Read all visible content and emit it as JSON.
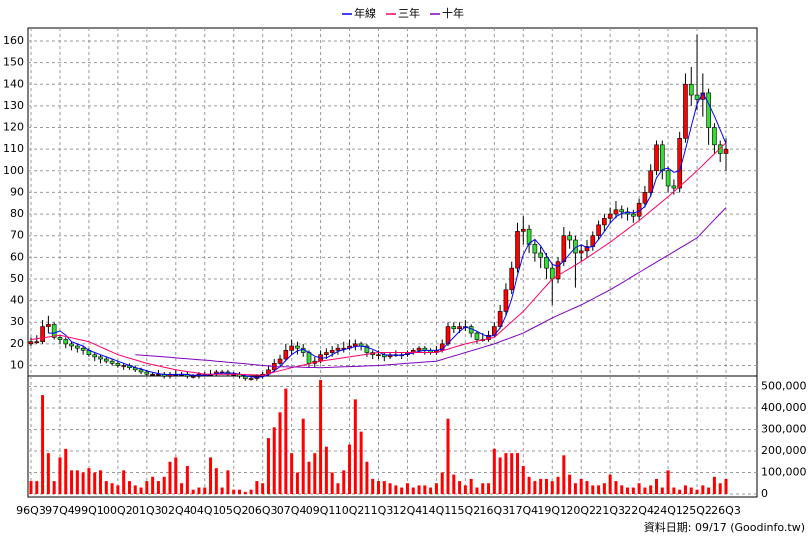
{
  "chart_data": {
    "type": "candlestick",
    "categories": [
      "96Q3",
      null,
      null,
      null,
      null,
      "97Q4",
      null,
      null,
      null,
      null,
      "99Q1",
      null,
      null,
      null,
      null,
      "00Q2",
      null,
      null,
      null,
      null,
      "01Q3",
      null,
      null,
      null,
      null,
      "02Q4",
      null,
      null,
      null,
      null,
      "04Q1",
      null,
      null,
      null,
      null,
      "05Q2",
      null,
      null,
      null,
      null,
      "06Q3",
      null,
      null,
      null,
      null,
      "07Q4",
      null,
      null,
      null,
      null,
      "09Q1",
      null,
      null,
      null,
      null,
      "10Q2",
      null,
      null,
      null,
      null,
      "11Q3",
      null,
      null,
      null,
      null,
      "12Q4",
      null,
      null,
      null,
      null,
      "14Q1",
      null,
      null,
      null,
      null,
      "15Q2",
      null,
      null,
      null,
      null,
      "16Q3",
      null,
      null,
      null,
      null,
      "17Q4",
      null,
      null,
      null,
      null,
      "19Q1",
      null,
      null,
      null,
      null,
      "20Q2",
      null,
      null,
      null,
      null,
      "21Q3",
      null,
      null,
      null,
      null,
      "22Q4",
      null,
      null,
      null,
      null,
      "24Q1",
      null,
      null,
      null,
      null,
      "25Q2",
      null,
      null,
      null,
      null,
      "26Q3"
    ],
    "ohlc": [
      [
        20,
        23,
        19,
        21
      ],
      [
        21,
        24,
        20,
        21
      ],
      [
        21,
        31,
        20,
        28
      ],
      [
        28,
        33,
        25,
        29
      ],
      [
        29,
        30,
        22,
        23
      ],
      [
        23,
        24,
        20,
        22
      ],
      [
        22,
        23,
        18,
        20
      ],
      [
        20,
        21,
        17,
        19
      ],
      [
        19,
        20,
        16,
        18
      ],
      [
        18,
        19,
        15,
        17
      ],
      [
        17,
        18,
        14,
        15
      ],
      [
        15,
        16,
        12,
        14
      ],
      [
        14,
        15,
        11,
        13
      ],
      [
        13,
        14,
        11,
        12
      ],
      [
        12,
        13,
        10,
        11
      ],
      [
        11,
        12,
        9,
        10
      ],
      [
        10,
        11,
        8,
        10
      ],
      [
        10,
        11,
        8,
        9
      ],
      [
        9,
        10,
        7,
        8
      ],
      [
        8,
        9,
        6,
        7
      ],
      [
        7,
        8,
        5,
        6
      ],
      [
        6,
        7,
        5,
        6
      ],
      [
        6,
        8,
        5,
        6
      ],
      [
        6,
        7,
        4,
        5
      ],
      [
        5,
        7,
        4,
        6
      ],
      [
        6,
        8,
        5,
        6
      ],
      [
        6,
        7,
        5,
        6
      ],
      [
        6,
        7,
        4,
        5
      ],
      [
        5,
        6,
        4,
        5
      ],
      [
        5,
        7,
        4,
        6
      ],
      [
        6,
        7,
        5,
        6
      ],
      [
        6,
        8,
        5,
        6
      ],
      [
        6,
        8,
        5,
        7
      ],
      [
        7,
        8,
        6,
        7
      ],
      [
        7,
        8,
        5,
        6
      ],
      [
        6,
        7,
        5,
        6
      ],
      [
        6,
        7,
        4,
        5
      ],
      [
        5,
        6,
        3,
        4
      ],
      [
        4,
        5,
        3,
        4
      ],
      [
        4,
        6,
        3,
        5
      ],
      [
        5,
        7,
        4,
        6
      ],
      [
        6,
        10,
        5,
        8
      ],
      [
        8,
        13,
        7,
        11
      ],
      [
        11,
        15,
        10,
        13
      ],
      [
        13,
        20,
        12,
        17
      ],
      [
        17,
        22,
        15,
        19
      ],
      [
        19,
        21,
        15,
        18
      ],
      [
        18,
        20,
        14,
        16
      ],
      [
        16,
        17,
        9,
        11
      ],
      [
        11,
        14,
        9,
        12
      ],
      [
        12,
        17,
        11,
        15
      ],
      [
        15,
        18,
        13,
        16
      ],
      [
        16,
        19,
        14,
        17
      ],
      [
        17,
        20,
        15,
        18
      ],
      [
        18,
        21,
        16,
        18
      ],
      [
        18,
        22,
        17,
        19
      ],
      [
        19,
        22,
        17,
        20
      ],
      [
        20,
        21,
        17,
        19
      ],
      [
        19,
        20,
        14,
        16
      ],
      [
        16,
        17,
        13,
        15
      ],
      [
        15,
        17,
        13,
        15
      ],
      [
        15,
        16,
        12,
        14
      ],
      [
        14,
        16,
        13,
        15
      ],
      [
        15,
        17,
        14,
        15
      ],
      [
        15,
        16,
        13,
        15
      ],
      [
        15,
        17,
        14,
        16
      ],
      [
        16,
        18,
        15,
        17
      ],
      [
        17,
        19,
        16,
        18
      ],
      [
        18,
        19,
        15,
        17
      ],
      [
        17,
        18,
        15,
        16
      ],
      [
        16,
        19,
        15,
        17
      ],
      [
        17,
        22,
        16,
        20
      ],
      [
        20,
        30,
        19,
        28
      ],
      [
        28,
        30,
        25,
        27
      ],
      [
        27,
        30,
        25,
        28
      ],
      [
        28,
        31,
        26,
        28
      ],
      [
        28,
        29,
        23,
        25
      ],
      [
        25,
        26,
        20,
        22
      ],
      [
        22,
        25,
        21,
        22
      ],
      [
        22,
        26,
        21,
        24
      ],
      [
        24,
        30,
        23,
        28
      ],
      [
        28,
        38,
        27,
        35
      ],
      [
        35,
        48,
        33,
        45
      ],
      [
        45,
        58,
        43,
        55
      ],
      [
        55,
        76,
        53,
        72
      ],
      [
        72,
        79,
        66,
        73
      ],
      [
        73,
        75,
        62,
        66
      ],
      [
        66,
        68,
        58,
        62
      ],
      [
        62,
        65,
        55,
        60
      ],
      [
        60,
        62,
        50,
        55
      ],
      [
        55,
        57,
        38,
        50
      ],
      [
        50,
        60,
        48,
        58
      ],
      [
        58,
        74,
        56,
        70
      ],
      [
        70,
        72,
        64,
        68
      ],
      [
        68,
        70,
        46,
        62
      ],
      [
        62,
        66,
        58,
        63
      ],
      [
        63,
        68,
        60,
        65
      ],
      [
        65,
        72,
        63,
        70
      ],
      [
        70,
        77,
        68,
        75
      ],
      [
        75,
        80,
        72,
        78
      ],
      [
        78,
        83,
        76,
        80
      ],
      [
        80,
        86,
        78,
        82
      ],
      [
        82,
        84,
        78,
        81
      ],
      [
        81,
        83,
        77,
        80
      ],
      [
        80,
        82,
        76,
        79
      ],
      [
        79,
        87,
        77,
        85
      ],
      [
        85,
        93,
        83,
        90
      ],
      [
        90,
        103,
        88,
        100
      ],
      [
        100,
        114,
        98,
        112
      ],
      [
        112,
        114,
        96,
        100
      ],
      [
        100,
        102,
        90,
        93
      ],
      [
        93,
        96,
        89,
        92
      ],
      [
        92,
        118,
        90,
        115
      ],
      [
        115,
        145,
        113,
        140
      ],
      [
        140,
        148,
        130,
        135
      ],
      [
        135,
        163,
        128,
        133
      ],
      [
        133,
        145,
        125,
        136
      ],
      [
        136,
        138,
        112,
        120
      ],
      [
        120,
        122,
        108,
        112
      ],
      [
        112,
        114,
        104,
        108
      ],
      [
        108,
        115,
        100,
        110
      ]
    ],
    "up_color": "#ff0000",
    "down_color": "#33dd33",
    "wick_color": "#000000",
    "ylim": [
      7,
      166
    ],
    "yticks": [
      10,
      20,
      30,
      40,
      50,
      60,
      70,
      80,
      90,
      100,
      110,
      120,
      130,
      140,
      150,
      160
    ],
    "grid": true,
    "series": [
      {
        "name": "年線",
        "color": "#0000ff",
        "values": [
          null,
          null,
          null,
          25,
          25,
          26,
          24,
          21,
          20,
          19,
          17,
          16,
          15,
          14,
          13,
          12,
          11,
          10,
          9,
          8.5,
          7.5,
          6.8,
          6.3,
          5.8,
          5.8,
          5.8,
          6,
          5.8,
          5.5,
          5.5,
          5.5,
          5.8,
          6.3,
          6.5,
          6.5,
          6.5,
          6,
          5.3,
          4.8,
          4.5,
          4.8,
          5.8,
          7.5,
          9.5,
          12.3,
          15,
          16.8,
          17.5,
          16,
          14.3,
          13.5,
          13.5,
          15,
          16.5,
          17.3,
          18,
          18.8,
          19,
          18.5,
          17.5,
          16.3,
          15,
          14.8,
          14.8,
          14.8,
          15.3,
          15.8,
          16.5,
          17,
          17,
          17,
          17.5,
          20.3,
          23,
          25.8,
          27.8,
          27,
          25.8,
          24.3,
          23.3,
          24,
          27.3,
          33,
          40.8,
          51.8,
          61.3,
          66.5,
          68.3,
          65.3,
          60.8,
          56.8,
          55.8,
          58.3,
          61.5,
          64.5,
          65.8,
          64.5,
          65,
          68.3,
          72,
          75.8,
          78.8,
          80.3,
          80.8,
          80.5,
          81.3,
          83.5,
          88.5,
          96.8,
          100.5,
          101.3,
          99.3,
          100,
          110,
          120.5,
          130.8,
          136,
          131,
          125.3,
          119,
          112.5
        ]
      },
      {
        "name": "三年",
        "color": "#ff0066",
        "values": [
          22,
          22.4,
          22.8,
          23.2,
          23.6,
          24,
          23.4,
          22.8,
          22.2,
          21.6,
          21,
          19.8,
          18.6,
          17.4,
          16.2,
          15,
          14.2,
          13.4,
          12.6,
          11.8,
          11,
          10.4,
          9.8,
          9.2,
          8.6,
          8,
          7.6,
          7.2,
          6.8,
          6.4,
          6,
          6,
          6,
          6,
          6,
          6,
          5.9,
          5.8,
          5.7,
          5.6,
          5.5,
          6.2,
          6.9,
          7.6,
          8.3,
          9,
          9.6,
          10.2,
          10.8,
          11.4,
          12,
          12.4,
          12.8,
          13.2,
          13.6,
          14,
          14.4,
          14.8,
          15.2,
          15.6,
          16,
          16,
          16,
          16,
          16,
          16,
          16,
          16,
          16,
          16,
          16,
          16.8,
          17.6,
          18.4,
          19.2,
          20,
          20.6,
          21.2,
          21.8,
          22.4,
          23,
          25.4,
          27.8,
          30.2,
          32.6,
          35,
          38,
          41,
          44,
          47,
          50,
          51.6,
          53.2,
          54.8,
          56.4,
          58,
          59.8,
          61.6,
          63.4,
          65.2,
          67,
          69,
          71,
          73,
          75,
          77,
          79.2,
          81.4,
          83.6,
          85.8,
          88,
          90.4,
          92.8,
          95.2,
          97.6,
          100,
          102.6,
          105.2,
          107.8,
          110.4,
          113
        ]
      },
      {
        "name": "十年",
        "color": "#8000c0",
        "values": [
          null,
          null,
          null,
          null,
          null,
          null,
          null,
          null,
          null,
          null,
          null,
          null,
          null,
          null,
          null,
          null,
          null,
          null,
          15,
          14.8,
          14.6,
          14.4,
          14.2,
          14,
          13.8,
          13.5,
          13.3,
          13.1,
          12.9,
          12.7,
          12.5,
          12.3,
          12,
          11.8,
          11.5,
          11.3,
          11,
          10.8,
          10.5,
          10.3,
          10,
          9.8,
          9.5,
          9.4,
          9.4,
          9.3,
          9.3,
          9.2,
          9.1,
          9.1,
          9,
          9.1,
          9.2,
          9.3,
          9.4,
          9.5,
          9.6,
          9.7,
          9.8,
          9.9,
          10,
          10.2,
          10.4,
          10.6,
          10.8,
          11,
          11.2,
          11.4,
          11.6,
          11.8,
          12,
          12.8,
          13.6,
          14.4,
          15.2,
          16,
          16.8,
          17.6,
          18.4,
          19.2,
          20,
          21,
          22,
          23,
          24,
          25,
          26.4,
          27.8,
          29.2,
          30.6,
          32,
          33.2,
          34.4,
          35.6,
          36.8,
          38,
          39.4,
          40.8,
          42.2,
          43.6,
          45,
          46.6,
          48.2,
          49.8,
          51.4,
          53,
          54.6,
          56.2,
          57.8,
          59.4,
          61,
          62.6,
          64.2,
          65.8,
          67.4,
          69,
          71.8,
          74.6,
          77.4,
          80.2,
          83
        ]
      }
    ],
    "volume": {
      "color": "#ff0000",
      "ylim": [
        0,
        530000
      ],
      "yticks": [
        0,
        {
          "value": 100000,
          "label": "100,000"
        },
        {
          "value": 200000,
          "label": "200,000"
        },
        {
          "value": 300000,
          "label": "300,000"
        },
        {
          "value": 400000,
          "label": "400,000"
        },
        {
          "value": 500000,
          "label": "500,000"
        }
      ],
      "values": [
        60000,
        60000,
        460000,
        190000,
        60000,
        170000,
        210000,
        110000,
        110000,
        100000,
        120000,
        100000,
        110000,
        60000,
        50000,
        40000,
        110000,
        60000,
        40000,
        30000,
        60000,
        80000,
        60000,
        80000,
        150000,
        170000,
        50000,
        130000,
        20000,
        30000,
        30000,
        170000,
        120000,
        30000,
        110000,
        20000,
        20000,
        10000,
        20000,
        60000,
        50000,
        260000,
        310000,
        380000,
        490000,
        190000,
        100000,
        350000,
        150000,
        190000,
        530000,
        220000,
        100000,
        50000,
        110000,
        230000,
        440000,
        290000,
        150000,
        70000,
        60000,
        60000,
        50000,
        40000,
        30000,
        50000,
        30000,
        40000,
        40000,
        30000,
        50000,
        100000,
        350000,
        90000,
        60000,
        40000,
        70000,
        30000,
        50000,
        50000,
        210000,
        170000,
        190000,
        190000,
        190000,
        130000,
        80000,
        60000,
        70000,
        70000,
        60000,
        80000,
        180000,
        90000,
        50000,
        70000,
        60000,
        40000,
        40000,
        50000,
        90000,
        60000,
        40000,
        30000,
        30000,
        50000,
        30000,
        40000,
        70000,
        30000,
        110000,
        30000,
        20000,
        40000,
        30000,
        20000,
        40000,
        30000,
        80000,
        50000,
        70000
      ]
    },
    "source": "資料日期: 09/17 (Goodinfo.tw)"
  }
}
